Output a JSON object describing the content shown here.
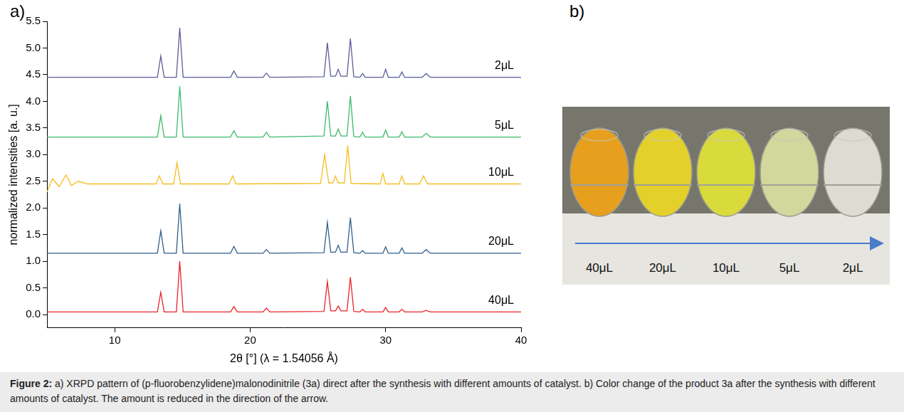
{
  "panel_labels": [
    "a)",
    "b)"
  ],
  "chart_data": {
    "type": "line",
    "x_label": "2θ [°] (λ = 1.54056 Å)",
    "y_label": "normalized intensities [a. u.]",
    "xlim": [
      5,
      40
    ],
    "xticks": [
      10,
      20,
      30,
      40
    ],
    "ylim": [
      -0.25,
      5.5
    ],
    "yticks": [
      {
        "value": 0,
        "label": "0.0"
      },
      0.5,
      {
        "value": 1,
        "label": "1.0"
      },
      1.5,
      {
        "value": 2,
        "label": "2.0"
      },
      2.5,
      {
        "value": 3,
        "label": "3.0"
      },
      3.5,
      {
        "value": 4,
        "label": "4.0"
      },
      4.5,
      {
        "value": 5,
        "label": "5.0"
      },
      5.5
    ],
    "grid": false,
    "series": [
      {
        "name": "2μL",
        "color": "#5a5c98",
        "x": [
          5,
          13.15,
          13.4,
          13.65,
          14.55,
          14.8,
          15.05,
          18.55,
          18.8,
          19.05,
          20.95,
          21.2,
          21.45,
          25.45,
          25.7,
          25.95,
          26.3,
          26.5,
          26.7,
          27.15,
          27.4,
          27.65,
          28.1,
          28.3,
          28.5,
          29.8,
          30.0,
          30.2,
          31.0,
          31.2,
          31.4,
          32.7,
          33.0,
          33.3,
          40
        ],
        "values": [
          4.45,
          4.45,
          4.85,
          4.45,
          4.45,
          5.38,
          4.45,
          4.45,
          4.57,
          4.45,
          4.45,
          4.53,
          4.45,
          4.46,
          5.1,
          4.47,
          4.47,
          4.6,
          4.47,
          4.47,
          5.18,
          4.46,
          4.45,
          4.52,
          4.45,
          4.45,
          4.6,
          4.45,
          4.45,
          4.55,
          4.45,
          4.45,
          4.52,
          4.45,
          4.45
        ]
      },
      {
        "name": "5μL",
        "color": "#3dbb6c",
        "x": [
          5,
          13.15,
          13.4,
          13.65,
          14.55,
          14.8,
          15.05,
          18.55,
          18.8,
          19.05,
          20.95,
          21.2,
          21.45,
          25.45,
          25.7,
          25.95,
          26.3,
          26.5,
          26.7,
          27.15,
          27.4,
          27.65,
          28.1,
          28.3,
          28.5,
          29.8,
          30.0,
          30.2,
          31.0,
          31.2,
          31.4,
          32.7,
          33.0,
          33.3,
          40
        ],
        "values": [
          3.33,
          3.33,
          3.73,
          3.33,
          3.33,
          4.28,
          3.33,
          3.33,
          3.45,
          3.33,
          3.33,
          3.42,
          3.33,
          3.35,
          4.0,
          3.35,
          3.35,
          3.48,
          3.35,
          3.35,
          4.1,
          3.34,
          3.33,
          3.42,
          3.33,
          3.33,
          3.46,
          3.33,
          3.33,
          3.43,
          3.33,
          3.33,
          3.4,
          3.33,
          3.33
        ]
      },
      {
        "name": "10μL",
        "color": "#f5bd1f",
        "x": [
          5,
          5.4,
          5.9,
          6.4,
          6.8,
          7.3,
          8,
          13.05,
          13.3,
          13.55,
          14.35,
          14.6,
          14.85,
          18.45,
          18.7,
          18.95,
          25.2,
          25.5,
          25.8,
          26.1,
          26.3,
          26.5,
          26.95,
          27.2,
          27.45,
          29.6,
          29.8,
          30.0,
          31.0,
          31.2,
          31.4,
          32.5,
          32.8,
          33.1,
          40
        ],
        "values": [
          2.3,
          2.55,
          2.4,
          2.62,
          2.42,
          2.5,
          2.45,
          2.45,
          2.6,
          2.45,
          2.45,
          2.85,
          2.45,
          2.45,
          2.6,
          2.45,
          2.46,
          3.0,
          2.47,
          2.47,
          2.6,
          2.47,
          2.47,
          3.17,
          2.46,
          2.45,
          2.65,
          2.45,
          2.45,
          2.6,
          2.45,
          2.45,
          2.6,
          2.45,
          2.45
        ]
      },
      {
        "name": "20μL",
        "color": "#2f5f8c",
        "x": [
          5,
          13.15,
          13.4,
          13.65,
          14.55,
          14.8,
          15.05,
          18.55,
          18.8,
          19.05,
          20.95,
          21.2,
          21.45,
          25.45,
          25.7,
          25.95,
          26.3,
          26.5,
          26.7,
          27.15,
          27.4,
          27.65,
          28.1,
          28.3,
          28.5,
          29.8,
          30.0,
          30.2,
          31.0,
          31.2,
          31.4,
          32.7,
          33.0,
          33.3,
          40
        ],
        "values": [
          1.15,
          1.15,
          1.57,
          1.15,
          1.15,
          2.08,
          1.15,
          1.15,
          1.28,
          1.15,
          1.15,
          1.22,
          1.15,
          1.16,
          1.73,
          1.17,
          1.17,
          1.3,
          1.17,
          1.17,
          1.82,
          1.16,
          1.15,
          1.2,
          1.15,
          1.15,
          1.27,
          1.15,
          1.15,
          1.25,
          1.15,
          1.15,
          1.22,
          1.15,
          1.15
        ]
      },
      {
        "name": "40μL",
        "color": "#e8242a",
        "x": [
          5,
          13.15,
          13.4,
          13.65,
          14.55,
          14.8,
          15.05,
          18.55,
          18.8,
          19.05,
          20.95,
          21.2,
          21.45,
          25.45,
          25.7,
          25.95,
          26.3,
          26.5,
          26.7,
          27.15,
          27.4,
          27.65,
          28.1,
          28.3,
          28.5,
          29.8,
          30.0,
          30.2,
          31.0,
          31.2,
          31.4,
          32.7,
          33.0,
          33.3,
          40
        ],
        "values": [
          0.05,
          0.05,
          0.42,
          0.05,
          0.05,
          1.0,
          0.05,
          0.05,
          0.15,
          0.05,
          0.05,
          0.12,
          0.05,
          0.06,
          0.62,
          0.07,
          0.07,
          0.16,
          0.07,
          0.07,
          0.7,
          0.06,
          0.05,
          0.1,
          0.05,
          0.05,
          0.13,
          0.05,
          0.05,
          0.1,
          0.05,
          0.05,
          0.08,
          0.05,
          0.05
        ]
      }
    ]
  },
  "photo": {
    "samples": [
      "40μL",
      "20μL",
      "10μL",
      "5μL",
      "2μL"
    ],
    "colors": [
      "#e6a01e",
      "#e4d02a",
      "#d9da3c",
      "#d2d79c",
      "#dddcd2"
    ]
  },
  "caption": {
    "label": "Figure 2:",
    "text": "a) XRPD pattern of (p-fluorobenzylidene)malonodinitrile (3a) direct after the synthesis with different amounts of catalyst. b) Color change of the product 3a after the synthesis with different amounts of catalyst. The amount is reduced in the direction of the arrow."
  }
}
